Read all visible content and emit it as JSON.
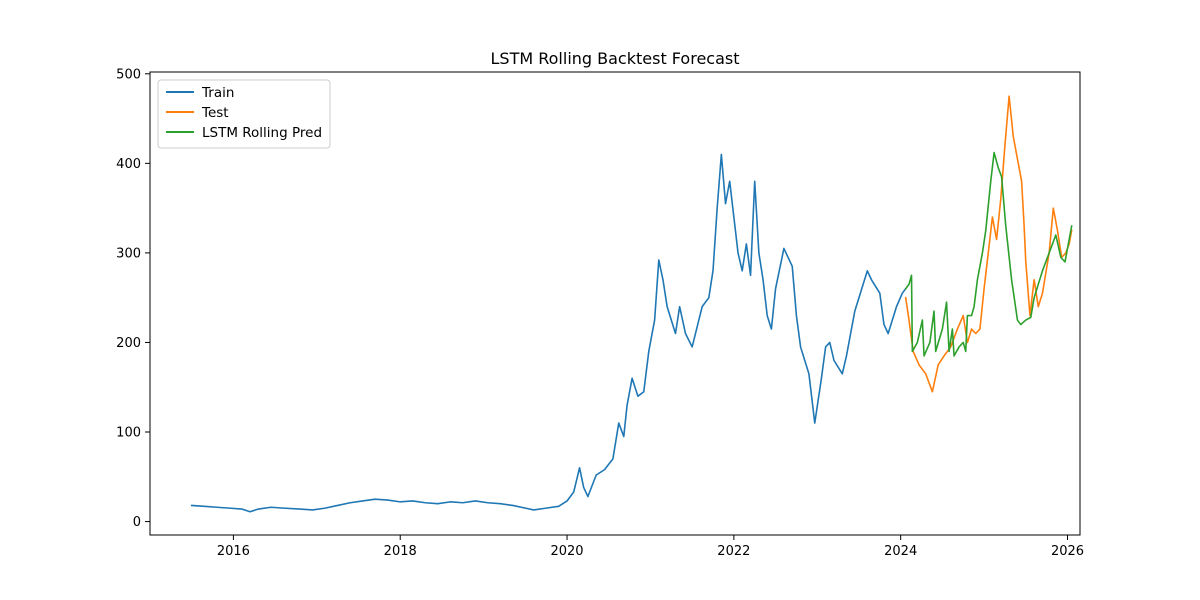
{
  "chart_data": {
    "type": "line",
    "title": "LSTM Rolling Backtest Forecast",
    "xlabel": "",
    "ylabel": "",
    "xlim": [
      2015.0,
      2026.15
    ],
    "ylim": [
      -15,
      502
    ],
    "x_ticks": [
      2016,
      2018,
      2020,
      2022,
      2024,
      2026
    ],
    "x_tick_labels": [
      "2016",
      "2018",
      "2020",
      "2022",
      "2024",
      "2026"
    ],
    "y_ticks": [
      0,
      100,
      200,
      300,
      400,
      500
    ],
    "y_tick_labels": [
      "0",
      "100",
      "200",
      "300",
      "400",
      "500"
    ],
    "grid": false,
    "legend_position": "upper-left",
    "series": [
      {
        "name": "Train",
        "color": "#1f77b4",
        "points": [
          [
            2015.5,
            18
          ],
          [
            2015.65,
            17
          ],
          [
            2015.8,
            16
          ],
          [
            2015.95,
            15
          ],
          [
            2016.1,
            14
          ],
          [
            2016.2,
            11
          ],
          [
            2016.3,
            14
          ],
          [
            2016.45,
            16
          ],
          [
            2016.6,
            15
          ],
          [
            2016.8,
            14
          ],
          [
            2016.95,
            13
          ],
          [
            2017.1,
            15
          ],
          [
            2017.25,
            18
          ],
          [
            2017.4,
            21
          ],
          [
            2017.55,
            23
          ],
          [
            2017.7,
            25
          ],
          [
            2017.85,
            24
          ],
          [
            2018.0,
            22
          ],
          [
            2018.15,
            23
          ],
          [
            2018.3,
            21
          ],
          [
            2018.45,
            20
          ],
          [
            2018.6,
            22
          ],
          [
            2018.75,
            21
          ],
          [
            2018.9,
            23
          ],
          [
            2019.05,
            21
          ],
          [
            2019.2,
            20
          ],
          [
            2019.35,
            18
          ],
          [
            2019.5,
            15
          ],
          [
            2019.6,
            13
          ],
          [
            2019.75,
            15
          ],
          [
            2019.9,
            17
          ],
          [
            2020.0,
            23
          ],
          [
            2020.08,
            33
          ],
          [
            2020.15,
            60
          ],
          [
            2020.2,
            38
          ],
          [
            2020.25,
            28
          ],
          [
            2020.35,
            52
          ],
          [
            2020.45,
            58
          ],
          [
            2020.55,
            70
          ],
          [
            2020.62,
            110
          ],
          [
            2020.68,
            95
          ],
          [
            2020.72,
            130
          ],
          [
            2020.78,
            160
          ],
          [
            2020.85,
            140
          ],
          [
            2020.92,
            145
          ],
          [
            2020.98,
            190
          ],
          [
            2021.05,
            225
          ],
          [
            2021.1,
            292
          ],
          [
            2021.15,
            270
          ],
          [
            2021.2,
            240
          ],
          [
            2021.3,
            210
          ],
          [
            2021.35,
            240
          ],
          [
            2021.42,
            210
          ],
          [
            2021.5,
            195
          ],
          [
            2021.58,
            225
          ],
          [
            2021.62,
            240
          ],
          [
            2021.7,
            250
          ],
          [
            2021.75,
            280
          ],
          [
            2021.8,
            350
          ],
          [
            2021.85,
            410
          ],
          [
            2021.9,
            355
          ],
          [
            2021.95,
            380
          ],
          [
            2022.0,
            340
          ],
          [
            2022.05,
            300
          ],
          [
            2022.1,
            280
          ],
          [
            2022.15,
            310
          ],
          [
            2022.2,
            275
          ],
          [
            2022.25,
            380
          ],
          [
            2022.3,
            300
          ],
          [
            2022.35,
            270
          ],
          [
            2022.4,
            230
          ],
          [
            2022.45,
            215
          ],
          [
            2022.5,
            260
          ],
          [
            2022.6,
            305
          ],
          [
            2022.7,
            285
          ],
          [
            2022.75,
            230
          ],
          [
            2022.8,
            195
          ],
          [
            2022.85,
            180
          ],
          [
            2022.9,
            165
          ],
          [
            2022.97,
            110
          ],
          [
            2023.05,
            160
          ],
          [
            2023.1,
            195
          ],
          [
            2023.15,
            200
          ],
          [
            2023.2,
            180
          ],
          [
            2023.3,
            165
          ],
          [
            2023.35,
            185
          ],
          [
            2023.45,
            235
          ],
          [
            2023.55,
            265
          ],
          [
            2023.6,
            280
          ],
          [
            2023.65,
            270
          ],
          [
            2023.75,
            255
          ],
          [
            2023.8,
            220
          ],
          [
            2023.85,
            210
          ],
          [
            2023.95,
            240
          ],
          [
            2024.02,
            255
          ],
          [
            2024.06,
            260
          ]
        ]
      },
      {
        "name": "Test",
        "color": "#ff7f0e",
        "points": [
          [
            2024.06,
            250
          ],
          [
            2024.1,
            225
          ],
          [
            2024.15,
            190
          ],
          [
            2024.22,
            175
          ],
          [
            2024.3,
            165
          ],
          [
            2024.38,
            145
          ],
          [
            2024.45,
            175
          ],
          [
            2024.52,
            185
          ],
          [
            2024.6,
            195
          ],
          [
            2024.68,
            215
          ],
          [
            2024.75,
            230
          ],
          [
            2024.8,
            200
          ],
          [
            2024.85,
            215
          ],
          [
            2024.9,
            210
          ],
          [
            2024.95,
            215
          ],
          [
            2025.0,
            260
          ],
          [
            2025.05,
            300
          ],
          [
            2025.1,
            340
          ],
          [
            2025.15,
            315
          ],
          [
            2025.2,
            360
          ],
          [
            2025.25,
            420
          ],
          [
            2025.3,
            475
          ],
          [
            2025.35,
            430
          ],
          [
            2025.4,
            405
          ],
          [
            2025.45,
            380
          ],
          [
            2025.48,
            330
          ],
          [
            2025.5,
            290
          ],
          [
            2025.55,
            230
          ],
          [
            2025.6,
            270
          ],
          [
            2025.65,
            240
          ],
          [
            2025.7,
            255
          ],
          [
            2025.78,
            300
          ],
          [
            2025.83,
            350
          ],
          [
            2025.88,
            325
          ],
          [
            2025.93,
            295
          ],
          [
            2025.98,
            300
          ],
          [
            2026.02,
            310
          ],
          [
            2026.05,
            325
          ]
        ]
      },
      {
        "name": "LSTM Rolling Pred",
        "color": "#2ca02c",
        "points": [
          [
            2024.06,
            260
          ],
          [
            2024.1,
            265
          ],
          [
            2024.13,
            275
          ],
          [
            2024.14,
            190
          ],
          [
            2024.2,
            200
          ],
          [
            2024.26,
            225
          ],
          [
            2024.28,
            185
          ],
          [
            2024.35,
            200
          ],
          [
            2024.4,
            235
          ],
          [
            2024.42,
            190
          ],
          [
            2024.5,
            215
          ],
          [
            2024.55,
            245
          ],
          [
            2024.58,
            190
          ],
          [
            2024.62,
            215
          ],
          [
            2024.64,
            185
          ],
          [
            2024.7,
            195
          ],
          [
            2024.75,
            200
          ],
          [
            2024.78,
            190
          ],
          [
            2024.8,
            230
          ],
          [
            2024.85,
            230
          ],
          [
            2024.88,
            240
          ],
          [
            2024.92,
            270
          ],
          [
            2024.98,
            300
          ],
          [
            2025.02,
            325
          ],
          [
            2025.08,
            380
          ],
          [
            2025.12,
            412
          ],
          [
            2025.17,
            395
          ],
          [
            2025.21,
            385
          ],
          [
            2025.26,
            330
          ],
          [
            2025.33,
            270
          ],
          [
            2025.4,
            225
          ],
          [
            2025.44,
            220
          ],
          [
            2025.5,
            225
          ],
          [
            2025.56,
            228
          ],
          [
            2025.6,
            250
          ],
          [
            2025.7,
            280
          ],
          [
            2025.8,
            305
          ],
          [
            2025.86,
            320
          ],
          [
            2025.92,
            295
          ],
          [
            2025.97,
            290
          ],
          [
            2026.02,
            315
          ],
          [
            2026.05,
            330
          ]
        ]
      }
    ]
  }
}
